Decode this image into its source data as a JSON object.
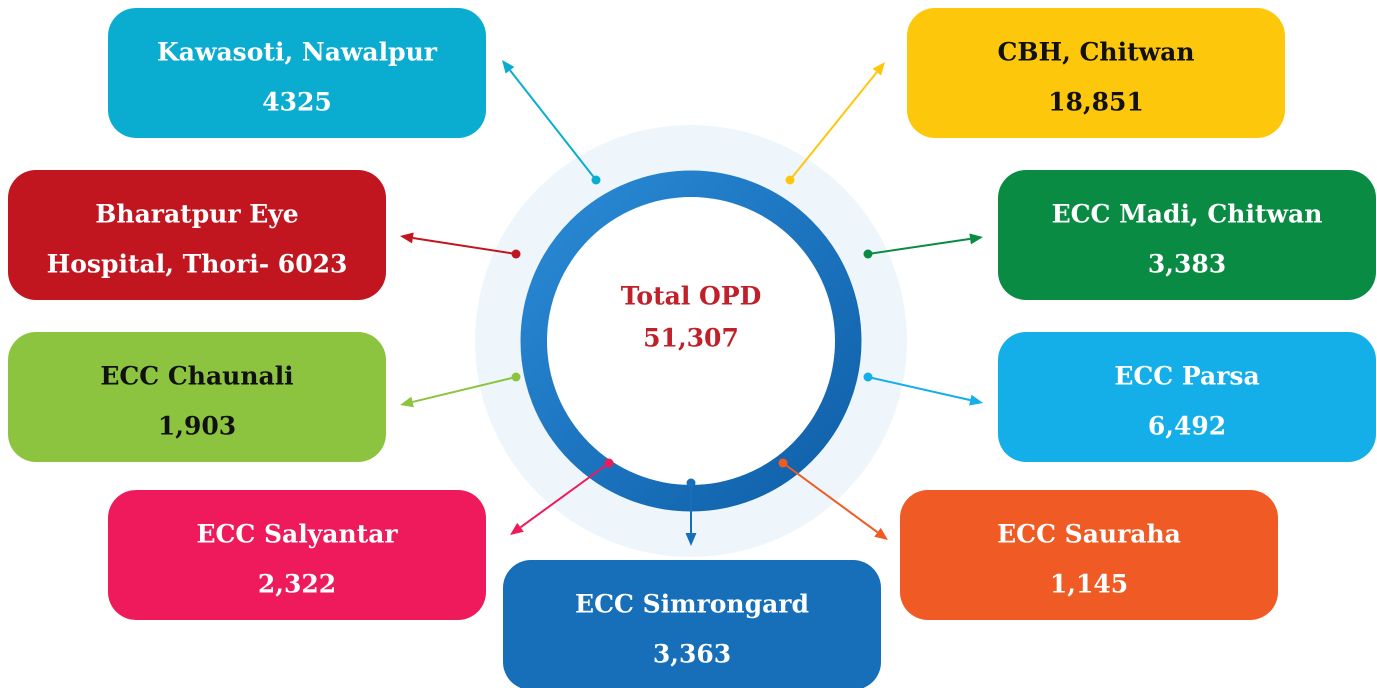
{
  "center": {
    "label": "Total OPD",
    "value": "51,307"
  },
  "nodes": [
    {
      "lines": [
        "Kawasoti, Nawalpur",
        "4325"
      ],
      "color": "#0aadd0",
      "text_color": "#ffffff"
    },
    {
      "lines": [
        "CBH, Chitwan",
        "18,851"
      ],
      "color": "#fdc80c",
      "text_color": "#111111"
    },
    {
      "lines": [
        "Bharatpur Eye",
        "Hospital, Thori- 6023"
      ],
      "color": "#c1161f",
      "text_color": "#ffffff"
    },
    {
      "lines": [
        "ECC Madi, Chitwan",
        "3,383"
      ],
      "color": "#0a8b43",
      "text_color": "#ffffff"
    },
    {
      "lines": [
        "ECC Chaunali",
        "1,903"
      ],
      "color": "#8cc440",
      "text_color": "#111111"
    },
    {
      "lines": [
        "ECC Parsa",
        "6,492"
      ],
      "color": "#14aee8",
      "text_color": "#ffffff"
    },
    {
      "lines": [
        "ECC Salyantar",
        "2,322"
      ],
      "color": "#ee1a5b",
      "text_color": "#ffffff"
    },
    {
      "lines": [
        "ECC Sauraha",
        "1,145"
      ],
      "color": "#f05a24",
      "text_color": "#ffffff"
    },
    {
      "lines": [
        "ECC Simrongard",
        "3,363"
      ],
      "color": "#166fb8",
      "text_color": "#ffffff"
    }
  ]
}
